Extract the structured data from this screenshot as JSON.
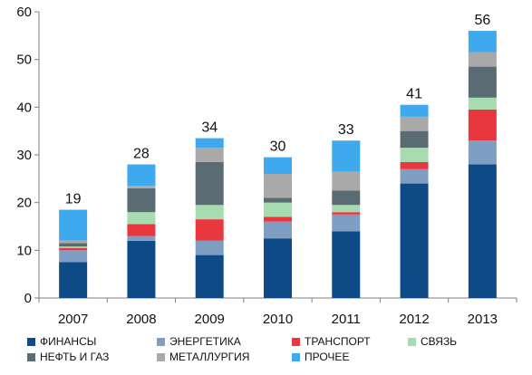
{
  "chart_data": {
    "type": "bar",
    "stacked": true,
    "categories": [
      "2007",
      "2008",
      "2009",
      "2010",
      "2011",
      "2012",
      "2013"
    ],
    "totals": [
      19,
      28,
      34,
      30,
      33,
      41,
      56
    ],
    "ylim": [
      0,
      60
    ],
    "yticks": [
      0,
      10,
      20,
      30,
      40,
      50,
      60
    ],
    "grid": false,
    "legend_position": "bottom",
    "series": [
      {
        "name": "ФИНАНСЫ",
        "color": "#0d4a86",
        "values": [
          7.5,
          12,
          9,
          12.5,
          14,
          24,
          28
        ]
      },
      {
        "name": "ЭНЕРГЕТИКА",
        "color": "#7f9ec4",
        "values": [
          2.5,
          1,
          3,
          3.5,
          3.5,
          3,
          5
        ]
      },
      {
        "name": "ТРАНСПОРТ",
        "color": "#e8373f",
        "values": [
          0.5,
          2.5,
          4.5,
          1,
          0.5,
          1.5,
          6.5
        ]
      },
      {
        "name": "СВЯЗЬ",
        "color": "#a6dcb0",
        "values": [
          0.3,
          2.5,
          3,
          3,
          1.5,
          3,
          2.5
        ]
      },
      {
        "name": "НЕФТЬ И ГАЗ",
        "color": "#5b6b73",
        "values": [
          0.7,
          5,
          9,
          1,
          3,
          3.5,
          6.5
        ]
      },
      {
        "name": "МЕТАЛЛУРГИЯ",
        "color": "#a9a9a9",
        "values": [
          0.5,
          0.5,
          3,
          5,
          4,
          3,
          3
        ]
      },
      {
        "name": "ПРОЧЕЕ",
        "color": "#3fa9ee",
        "values": [
          6.5,
          4.5,
          2,
          3.5,
          6.5,
          2.5,
          4.5
        ]
      }
    ]
  }
}
